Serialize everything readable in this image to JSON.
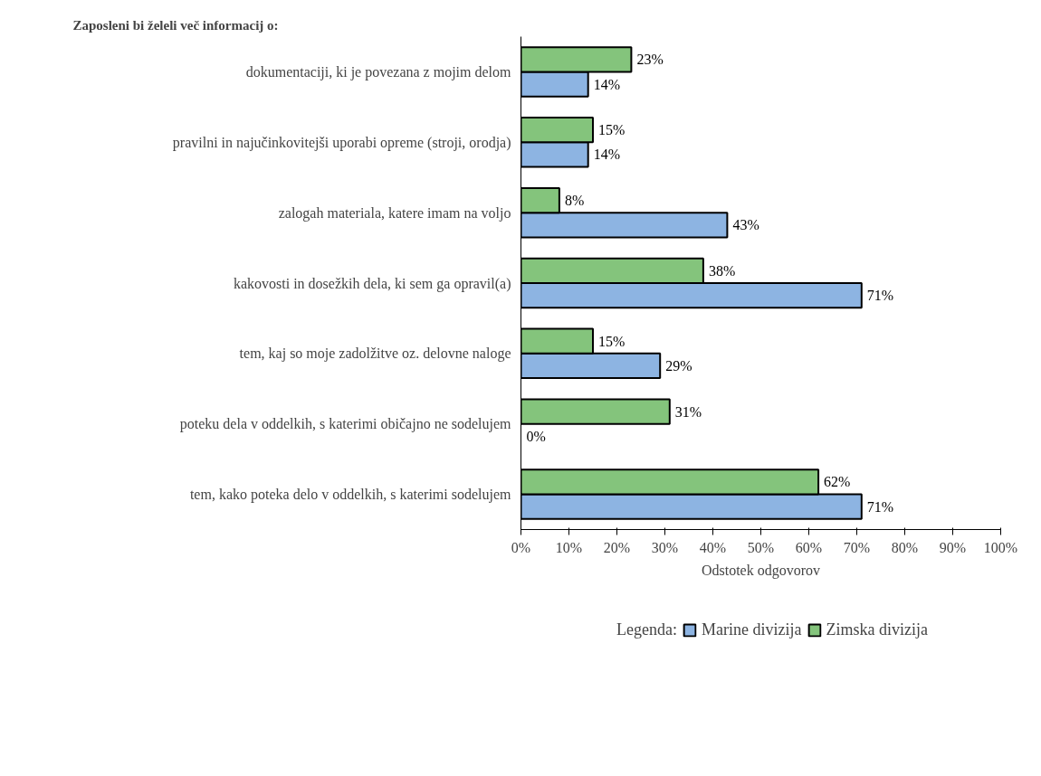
{
  "chart_data": {
    "type": "bar",
    "orientation": "horizontal",
    "title": "Zaposleni bi želeli več informacij o:",
    "xlabel": "Odstotek odgovorov",
    "legend_title": "Legenda:",
    "legend": "bottom",
    "grid": false,
    "categories": [
      "dokumentaciji, ki je povezana z mojim delom",
      "pravilni in najučinkovitejši uporabi opreme (stroji, orodja)",
      "zalogah materiala, katere imam na voljo",
      "kakovosti in dosežkih dela, ki sem ga opravil(a)",
      "tem, kaj so moje zadolžitve oz. delovne naloge",
      "poteku dela v oddelkih, s katerimi običajno ne sodelujem",
      "tem, kako poteka delo v oddelkih, s katerimi sodelujem"
    ],
    "xlim": [
      0,
      100
    ],
    "xticks": [
      {
        "value": 0,
        "label": "0%"
      },
      {
        "value": 10,
        "label": "10%"
      },
      {
        "value": 20,
        "label": "20%"
      },
      {
        "value": 30,
        "label": "30%"
      },
      {
        "value": 40,
        "label": "40%"
      },
      {
        "value": 50,
        "label": "50%"
      },
      {
        "value": 60,
        "label": "60%"
      },
      {
        "value": 70,
        "label": "70%"
      },
      {
        "value": 80,
        "label": "80%"
      },
      {
        "value": 90,
        "label": "90%"
      },
      {
        "value": 100,
        "label": "100%"
      }
    ],
    "series": [
      {
        "name": "Marine divizija",
        "color": "#8db4e2",
        "values": [
          14,
          14,
          43,
          71,
          29,
          0,
          71
        ],
        "value_labels": [
          "14%",
          "14%",
          "43%",
          "71%",
          "29%",
          "0%",
          "71%"
        ]
      },
      {
        "name": "Zimska divizija",
        "color": "#84c47c",
        "values": [
          23,
          15,
          8,
          38,
          15,
          31,
          62
        ],
        "value_labels": [
          "23%",
          "15%",
          "8%",
          "38%",
          "15%",
          "31%",
          "62%"
        ]
      }
    ]
  }
}
